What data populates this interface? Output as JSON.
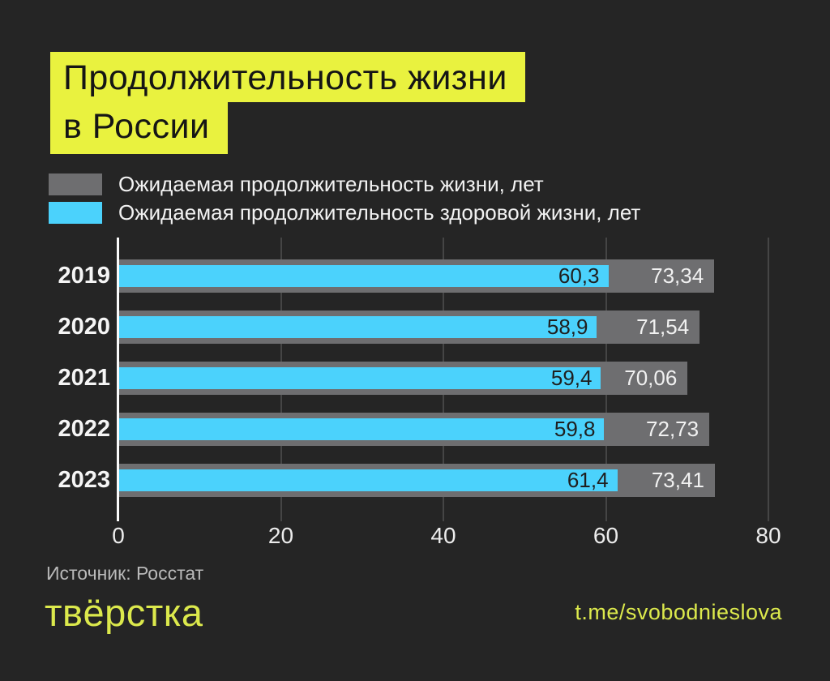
{
  "title": {
    "line1": "Продолжительность жизни",
    "line2": "в России"
  },
  "legend": [
    {
      "label": "Ожидаемая продолжительность жизни, лет",
      "color": "#6e6e70"
    },
    {
      "label": "Ожидаемая продолжительность здоровой жизни, лет",
      "color": "#4bd2fc"
    }
  ],
  "chart_data": {
    "type": "bar",
    "orientation": "horizontal",
    "title": "Продолжительность жизни в России",
    "categories": [
      "2019",
      "2020",
      "2021",
      "2022",
      "2023"
    ],
    "series": [
      {
        "name": "Ожидаемая продолжительность жизни, лет",
        "color": "#6e6e70",
        "values": [
          73.34,
          71.54,
          70.06,
          72.73,
          73.41
        ],
        "labels": [
          "73,34",
          "71,54",
          "70,06",
          "72,73",
          "73,41"
        ],
        "label_color": "#f1f1f1"
      },
      {
        "name": "Ожидаемая продолжительность здоровой жизни, лет",
        "color": "#4bd2fc",
        "values": [
          60.3,
          58.9,
          59.4,
          59.8,
          61.4
        ],
        "labels": [
          "60,3",
          "58,9",
          "59,4",
          "59,8",
          "61,4"
        ],
        "label_color": "#1f1f1f"
      }
    ],
    "xlim": [
      0,
      80
    ],
    "xticks": [
      0,
      20,
      40,
      60,
      80
    ],
    "grid": true,
    "legend_position": "top-left"
  },
  "footer": {
    "source": "Источник: Росстат",
    "logo": "твёрстка",
    "link": "t.me/svobodnieslova"
  },
  "colors": {
    "background": "#252525",
    "accent_yellow": "#e9f23f",
    "footer_yellow": "#dce94c",
    "bar_gray": "#6e6e70",
    "bar_blue": "#4bd2fc",
    "gridline": "#454545",
    "axis_line": "#fafafa",
    "year_text": "#f5f5f5",
    "source_text": "#b9b9b9"
  }
}
